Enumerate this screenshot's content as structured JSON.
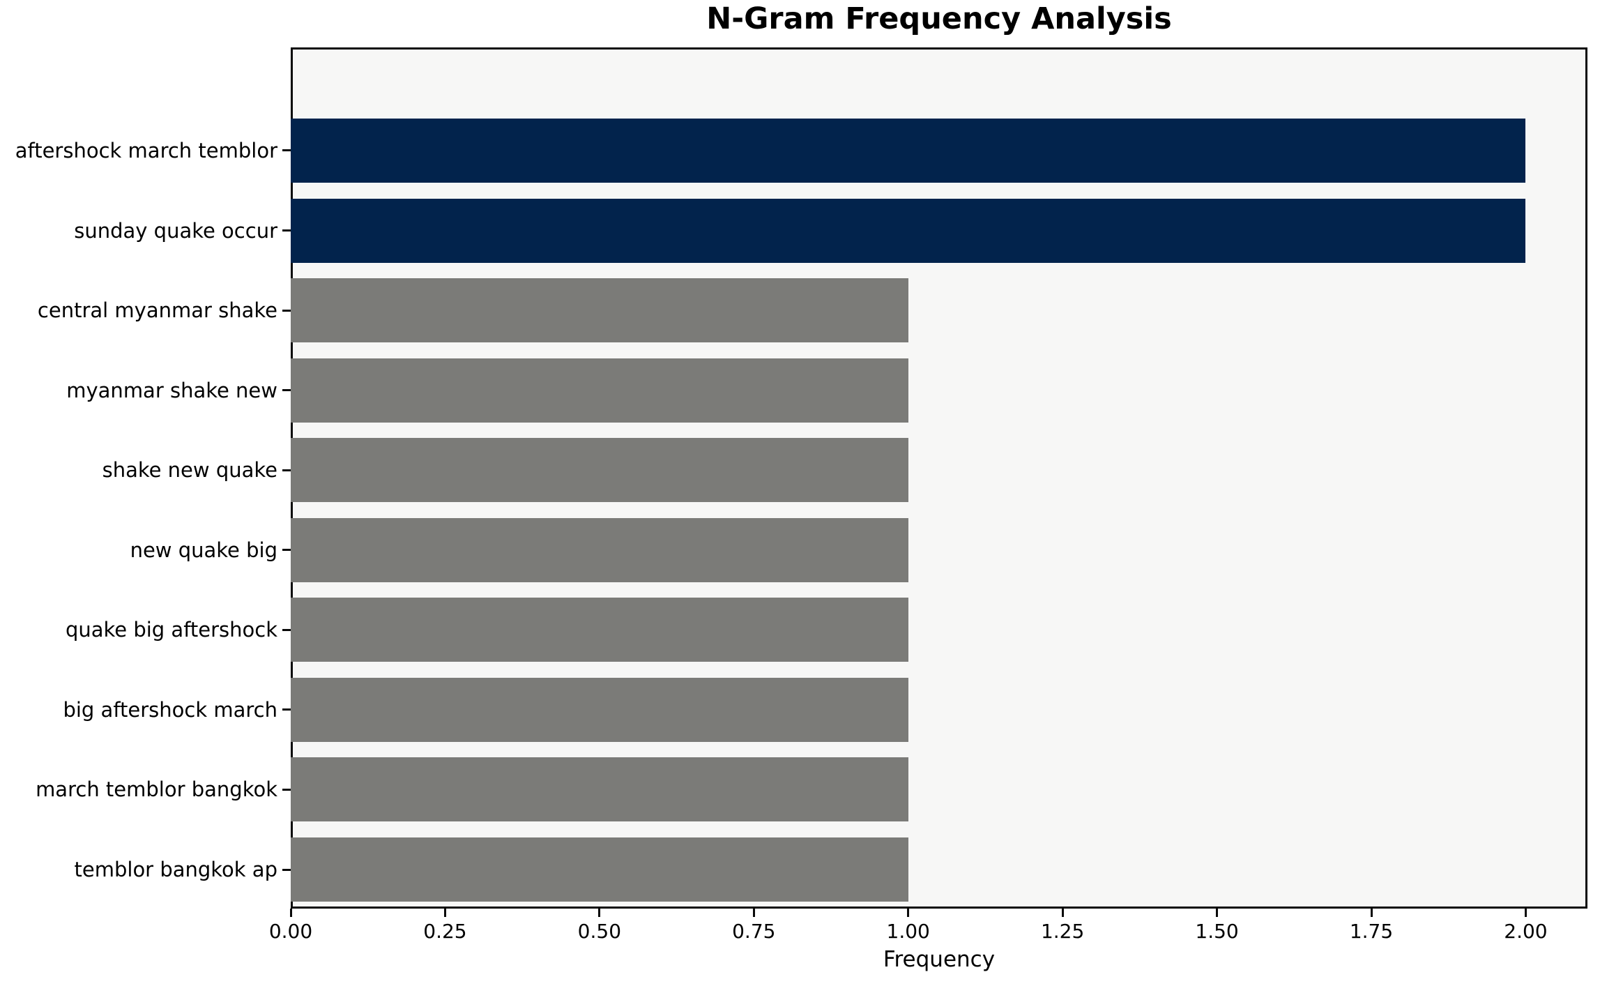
{
  "chart_data": {
    "type": "bar",
    "orientation": "horizontal",
    "title": "N-Gram Frequency Analysis",
    "xlabel": "Frequency",
    "ylabel": "",
    "categories": [
      "aftershock march temblor",
      "sunday quake occur",
      "central myanmar shake",
      "myanmar shake new",
      "shake new quake",
      "new quake big",
      "quake big aftershock",
      "big aftershock march",
      "march temblor bangkok",
      "temblor bangkok ap"
    ],
    "values": [
      2,
      2,
      1,
      1,
      1,
      1,
      1,
      1,
      1,
      1
    ],
    "bar_colors": [
      "#02234c",
      "#02234c",
      "#7b7b78",
      "#7b7b78",
      "#7b7b78",
      "#7b7b78",
      "#7b7b78",
      "#7b7b78",
      "#7b7b78",
      "#7b7b78"
    ],
    "x_tick_labels": [
      "0.00",
      "0.25",
      "0.50",
      "0.75",
      "1.00",
      "1.25",
      "1.50",
      "1.75",
      "2.00"
    ],
    "x_tick_values": [
      0,
      0.25,
      0.5,
      0.75,
      1.0,
      1.25,
      1.5,
      1.75,
      2.0
    ],
    "xlim": [
      0,
      2.1
    ],
    "grid": false,
    "legend": null,
    "colors": {
      "highlight_navy": "#02234c",
      "default_gray": "#7b7b78",
      "plot_background": "#f7f7f6",
      "figure_background": "#ffffff",
      "spine": "#0a0a0a",
      "text": "#000000"
    }
  }
}
